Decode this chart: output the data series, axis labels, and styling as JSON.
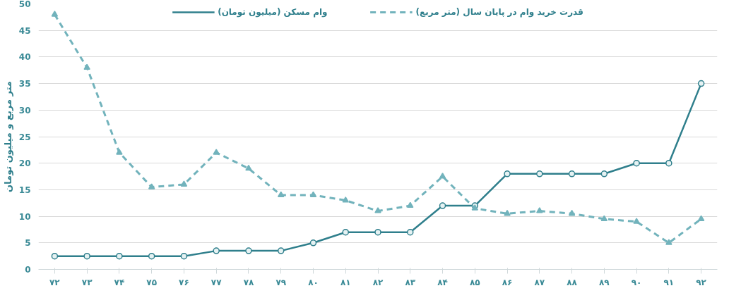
{
  "chart_data": {
    "type": "line",
    "ylabel": "متر مربع و میلیون تومان",
    "categories": [
      "۷۲",
      "۷۳",
      "۷۴",
      "۷۵",
      "۷۶",
      "۷۷",
      "۷۸",
      "۷۹",
      "۸۰",
      "۸۱",
      "۸۲",
      "۸۳",
      "۸۴",
      "۸۵",
      "۸۶",
      "۸۷",
      "۸۸",
      "۸۹",
      "۹۰",
      "۹۱",
      "۹۲"
    ],
    "series": [
      {
        "name": "وام مسکن (میلیون تومان)",
        "color": "#2f7f8c",
        "marker": "circle",
        "line_style": "solid",
        "values": [
          2.5,
          2.5,
          2.5,
          2.5,
          2.5,
          3.5,
          3.5,
          3.5,
          5,
          7,
          7,
          7,
          12,
          12,
          18,
          18,
          18,
          18,
          20,
          20,
          35
        ]
      },
      {
        "name": "قدرت خرید وام در پایان سال (متر مربع)",
        "color": "#72b3bc",
        "marker": "triangle",
        "line_style": "dashed",
        "values": [
          48,
          38,
          22,
          15.5,
          16,
          22,
          19,
          14,
          14,
          13,
          11,
          12,
          17.5,
          11.5,
          10.5,
          11,
          10.5,
          9.5,
          9,
          5,
          9.5
        ]
      }
    ],
    "ylim": [
      0,
      50
    ],
    "yticks": [
      0,
      5,
      10,
      15,
      20,
      25,
      30,
      35,
      40,
      45,
      50
    ],
    "grid": "y",
    "legend": "top"
  }
}
